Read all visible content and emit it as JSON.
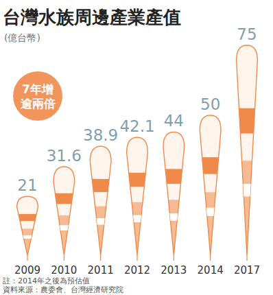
{
  "chart_data": {
    "type": "bar",
    "title": "台灣水族周邊產業產值",
    "subtitle": "(億台幣)",
    "annotation": [
      "7年增",
      "逾兩倍"
    ],
    "note": "註：2014年之後為預估值",
    "source": "資料來源：農委會、台灣經濟研究院",
    "categories": [
      "2009",
      "2010",
      "2011",
      "2012",
      "2013",
      "2014",
      "2017"
    ],
    "values": [
      21,
      31.6,
      38.9,
      42.1,
      44,
      50,
      75
    ],
    "color": "#f08a4b",
    "data_labels": true,
    "tick_labels": "x"
  }
}
